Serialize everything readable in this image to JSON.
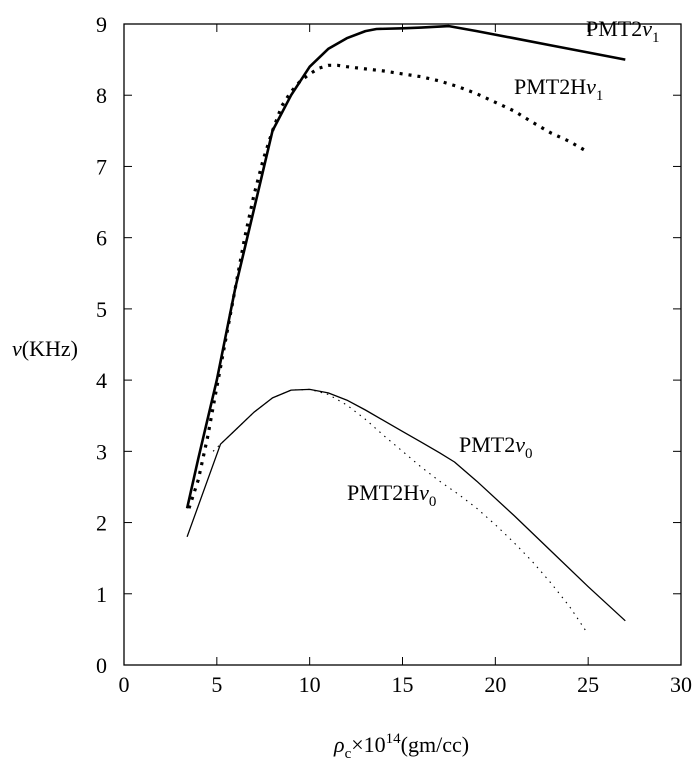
{
  "chart_data": {
    "type": "line",
    "title": "",
    "xlabel": "ρc×10¹⁴(gm/cc)",
    "xlabel_parts": {
      "rho": "ρ",
      "sub": "c",
      "mult": "×10",
      "exp": "14",
      "unit": "(gm/cc)"
    },
    "ylabel": "ν(KHz)",
    "ylabel_parts": {
      "nu": "ν",
      "unit": "(KHz)"
    },
    "xlim": [
      0,
      30
    ],
    "ylim": [
      0,
      9
    ],
    "xticks": [
      0,
      5,
      10,
      15,
      20,
      25,
      30
    ],
    "yticks": [
      0,
      1,
      2,
      3,
      4,
      5,
      6,
      7,
      8,
      9
    ],
    "grid": false,
    "series": [
      {
        "name": "PMT2ν1",
        "label_parts": {
          "base": "PMT2",
          "greek": "ν",
          "sub": "1"
        },
        "style": "solid-thick",
        "x": [
          3.4,
          4.0,
          5.0,
          6.0,
          7.0,
          8.0,
          9.0,
          10.0,
          11.0,
          12.0,
          13.0,
          13.6,
          15.0,
          16.0,
          17.5,
          19.0,
          21.0,
          23.0,
          25.0,
          27.0
        ],
        "y": [
          2.2,
          2.9,
          4.0,
          5.3,
          6.4,
          7.5,
          8.0,
          8.4,
          8.65,
          8.8,
          8.9,
          8.93,
          8.94,
          8.95,
          8.97,
          8.9,
          8.8,
          8.7,
          8.6,
          8.5
        ]
      },
      {
        "name": "PMT2Hν1",
        "label_parts": {
          "base": "PMT2H",
          "greek": "ν",
          "sub": "1"
        },
        "style": "dotted-bold",
        "x": [
          3.5,
          4.0,
          4.5,
          5.0,
          5.5,
          6.0,
          6.5,
          7.0,
          7.5,
          8.0,
          8.5,
          9.0,
          9.5,
          10.0,
          10.5,
          11.0,
          11.5,
          12.0,
          13.0,
          14.0,
          15.0,
          16.0,
          17.0,
          18.0,
          19.0,
          20.0,
          21.0,
          22.0,
          23.0,
          24.0,
          25.0
        ],
        "y": [
          2.2,
          2.6,
          3.2,
          3.9,
          4.6,
          5.3,
          6.0,
          6.6,
          7.1,
          7.5,
          7.85,
          8.05,
          8.2,
          8.3,
          8.38,
          8.42,
          8.42,
          8.4,
          8.37,
          8.34,
          8.3,
          8.26,
          8.2,
          8.12,
          8.02,
          7.9,
          7.78,
          7.62,
          7.47,
          7.35,
          7.2
        ]
      },
      {
        "name": "PMT2ν0",
        "label_parts": {
          "base": "PMT2",
          "greek": "ν",
          "sub": "0"
        },
        "style": "solid-thin",
        "x": [
          3.4,
          5.2,
          6.0,
          7.0,
          8.0,
          9.0,
          10.0,
          11.0,
          12.0,
          13.0,
          14.0,
          15.0,
          16.0,
          17.0,
          17.8,
          19.0,
          21.0,
          23.0,
          25.0,
          27.0
        ],
        "y": [
          1.8,
          3.1,
          3.3,
          3.55,
          3.75,
          3.86,
          3.87,
          3.82,
          3.72,
          3.58,
          3.43,
          3.28,
          3.13,
          2.98,
          2.85,
          2.58,
          2.1,
          1.6,
          1.1,
          0.62
        ]
      },
      {
        "name": "PMT2Hν0",
        "label_parts": {
          "base": "PMT2H",
          "greek": "ν",
          "sub": "0"
        },
        "style": "dotted-thin",
        "x": [
          4.8,
          6.0,
          7.0,
          8.0,
          9.0,
          10.0,
          11.0,
          12.0,
          13.0,
          14.0,
          15.0,
          16.0,
          17.0,
          18.0,
          19.0,
          20.0,
          21.0,
          22.0,
          23.0,
          24.0,
          24.9
        ],
        "y": [
          3.0,
          3.3,
          3.55,
          3.75,
          3.86,
          3.87,
          3.8,
          3.65,
          3.45,
          3.22,
          3.0,
          2.78,
          2.58,
          2.4,
          2.2,
          1.97,
          1.72,
          1.45,
          1.15,
          0.82,
          0.47
        ]
      }
    ]
  }
}
